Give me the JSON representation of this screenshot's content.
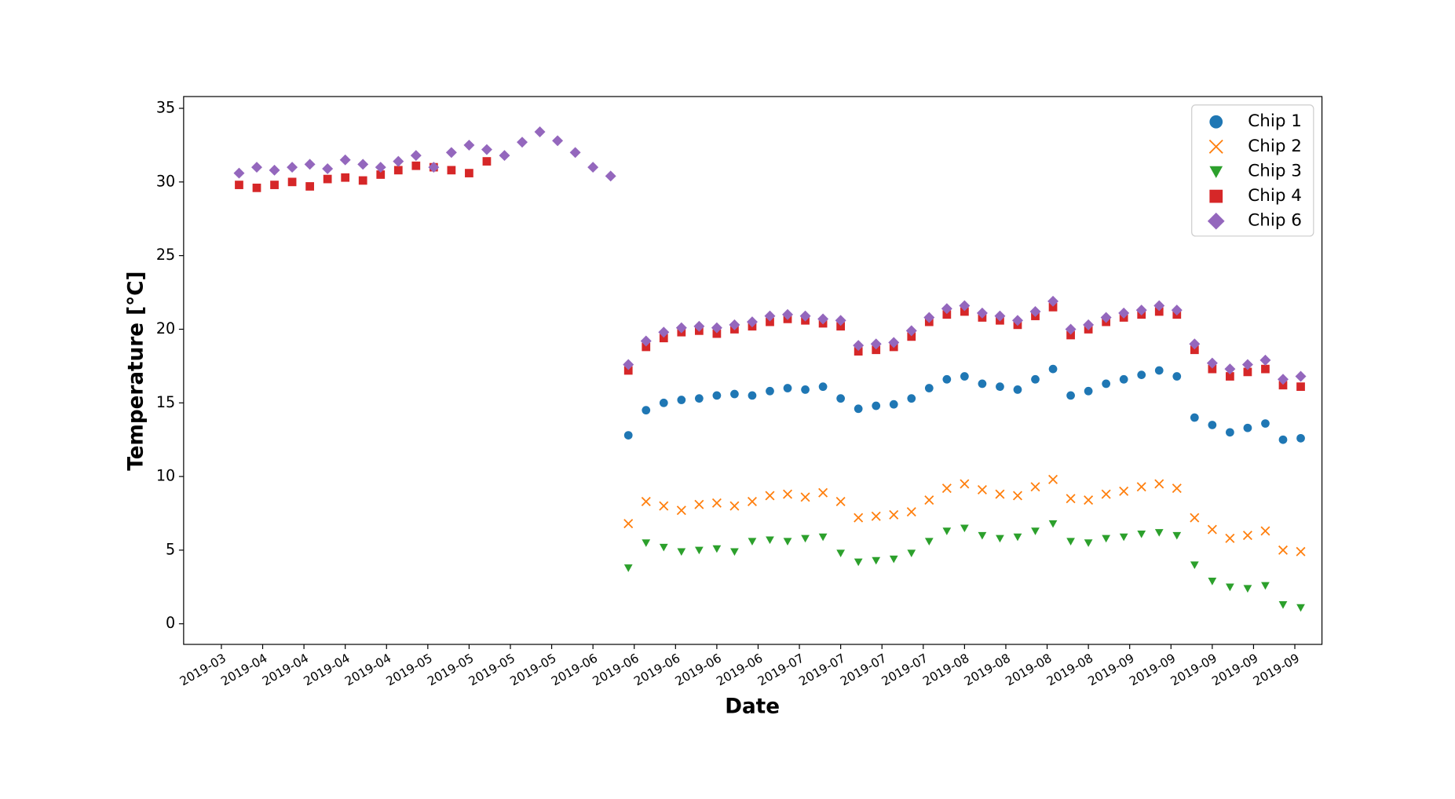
{
  "chart_data": {
    "type": "scatter",
    "x_label": "Date",
    "y_label": "Temperature [°C]",
    "xlim": [
      83.6,
      276.6
    ],
    "ylim": [
      -1.4,
      35.8
    ],
    "yticks": [
      0,
      5,
      10,
      15,
      20,
      25,
      30,
      35
    ],
    "xticks": [
      {
        "value": 90,
        "label": "2019-03"
      },
      {
        "value": 97,
        "label": "2019-04"
      },
      {
        "value": 104,
        "label": "2019-04"
      },
      {
        "value": 111,
        "label": "2019-04"
      },
      {
        "value": 118,
        "label": "2019-04"
      },
      {
        "value": 125,
        "label": "2019-05"
      },
      {
        "value": 132,
        "label": "2019-05"
      },
      {
        "value": 139,
        "label": "2019-05"
      },
      {
        "value": 146,
        "label": "2019-05"
      },
      {
        "value": 153,
        "label": "2019-06"
      },
      {
        "value": 160,
        "label": "2019-06"
      },
      {
        "value": 167,
        "label": "2019-06"
      },
      {
        "value": 174,
        "label": "2019-06"
      },
      {
        "value": 181,
        "label": "2019-06"
      },
      {
        "value": 188,
        "label": "2019-07"
      },
      {
        "value": 195,
        "label": "2019-07"
      },
      {
        "value": 202,
        "label": "2019-07"
      },
      {
        "value": 209,
        "label": "2019-07"
      },
      {
        "value": 216,
        "label": "2019-08"
      },
      {
        "value": 223,
        "label": "2019-08"
      },
      {
        "value": 230,
        "label": "2019-08"
      },
      {
        "value": 237,
        "label": "2019-08"
      },
      {
        "value": 244,
        "label": "2019-09"
      },
      {
        "value": 251,
        "label": "2019-09"
      },
      {
        "value": 258,
        "label": "2019-09"
      },
      {
        "value": 265,
        "label": "2019-09"
      },
      {
        "value": 272,
        "label": "2019-09"
      }
    ],
    "legend": "upper right",
    "series": [
      {
        "name": "Chip 1",
        "color": "#1f77b4",
        "marker": "circle",
        "x": [
          159,
          162,
          165,
          168,
          171,
          174,
          177,
          180,
          183,
          186,
          189,
          192,
          195,
          198,
          201,
          204,
          207,
          210,
          213,
          216,
          219,
          222,
          225,
          228,
          231,
          234,
          237,
          240,
          243,
          246,
          249,
          252,
          255,
          258,
          261,
          264,
          267,
          270,
          273
        ],
        "values": [
          12.8,
          14.5,
          15,
          15.2,
          15.3,
          15.5,
          15.6,
          15.5,
          15.8,
          16.0,
          15.9,
          16.1,
          15.3,
          14.6,
          14.8,
          14.9,
          15.3,
          16.0,
          16.6,
          16.8,
          16.3,
          16.1,
          15.9,
          16.6,
          17.3,
          15.5,
          15.8,
          16.3,
          16.6,
          16.9,
          17.2,
          16.8,
          14.0,
          13.5,
          13.0,
          13.3,
          13.6,
          12.5,
          12.6
        ]
      },
      {
        "name": "Chip 2",
        "color": "#ff7f0e",
        "marker": "x",
        "x": [
          159,
          162,
          165,
          168,
          171,
          174,
          177,
          180,
          183,
          186,
          189,
          192,
          195,
          198,
          201,
          204,
          207,
          210,
          213,
          216,
          219,
          222,
          225,
          228,
          231,
          234,
          237,
          240,
          243,
          246,
          249,
          252,
          255,
          258,
          261,
          264,
          267,
          270,
          273
        ],
        "values": [
          6.8,
          8.3,
          8.0,
          7.7,
          8.1,
          8.2,
          8.0,
          8.3,
          8.7,
          8.8,
          8.6,
          8.9,
          8.3,
          7.2,
          7.3,
          7.4,
          7.6,
          8.4,
          9.2,
          9.5,
          9.1,
          8.8,
          8.7,
          9.3,
          9.8,
          8.5,
          8.4,
          8.8,
          9.0,
          9.3,
          9.5,
          9.2,
          7.2,
          6.4,
          5.8,
          6.0,
          6.3,
          5.0,
          4.9
        ]
      },
      {
        "name": "Chip 3",
        "color": "#2ca02c",
        "marker": "triangle-down",
        "x": [
          159,
          162,
          165,
          168,
          171,
          174,
          177,
          180,
          183,
          186,
          189,
          192,
          195,
          198,
          201,
          204,
          207,
          210,
          213,
          216,
          219,
          222,
          225,
          228,
          231,
          234,
          237,
          240,
          243,
          246,
          249,
          252,
          255,
          258,
          261,
          264,
          267,
          270,
          273
        ],
        "values": [
          3.8,
          5.5,
          5.2,
          4.9,
          5.0,
          5.1,
          4.9,
          5.6,
          5.7,
          5.6,
          5.8,
          5.9,
          4.8,
          4.2,
          4.3,
          4.4,
          4.8,
          5.6,
          6.3,
          6.5,
          6.0,
          5.8,
          5.9,
          6.3,
          6.8,
          5.6,
          5.5,
          5.8,
          5.9,
          6.1,
          6.2,
          6.0,
          4.0,
          2.9,
          2.5,
          2.4,
          2.6,
          1.3,
          1.1
        ]
      },
      {
        "name": "Chip 4",
        "color": "#d62728",
        "marker": "square",
        "x": [
          93,
          96,
          99,
          102,
          105,
          108,
          111,
          114,
          117,
          120,
          123,
          126,
          129,
          132,
          135,
          159,
          162,
          165,
          168,
          171,
          174,
          177,
          180,
          183,
          186,
          189,
          192,
          195,
          198,
          201,
          204,
          207,
          210,
          213,
          216,
          219,
          222,
          225,
          228,
          231,
          234,
          237,
          240,
          243,
          246,
          249,
          252,
          255,
          258,
          261,
          264,
          267,
          270,
          273
        ],
        "values": [
          29.8,
          29.6,
          29.8,
          30.0,
          29.7,
          30.2,
          30.3,
          30.1,
          30.5,
          30.8,
          31.1,
          31.0,
          30.8,
          30.6,
          31.4,
          17.2,
          18.8,
          19.4,
          19.8,
          19.9,
          19.7,
          20.0,
          20.2,
          20.5,
          20.7,
          20.6,
          20.4,
          20.2,
          18.5,
          18.6,
          18.8,
          19.5,
          20.5,
          21.0,
          21.2,
          20.8,
          20.6,
          20.3,
          20.9,
          21.5,
          19.6,
          20.0,
          20.5,
          20.8,
          21.0,
          21.2,
          21.0,
          18.6,
          17.3,
          16.8,
          17.1,
          17.3,
          16.2,
          16.1
        ]
      },
      {
        "name": "Chip 6",
        "color": "#9467bd",
        "marker": "diamond",
        "x": [
          93,
          96,
          99,
          102,
          105,
          108,
          111,
          114,
          117,
          120,
          123,
          126,
          129,
          132,
          135,
          138,
          141,
          144,
          147,
          150,
          153,
          156,
          159,
          162,
          165,
          168,
          171,
          174,
          177,
          180,
          183,
          186,
          189,
          192,
          195,
          198,
          201,
          204,
          207,
          210,
          213,
          216,
          219,
          222,
          225,
          228,
          231,
          234,
          237,
          240,
          243,
          246,
          249,
          252,
          255,
          258,
          261,
          264,
          267,
          270,
          273
        ],
        "values": [
          30.6,
          31.0,
          30.8,
          31.0,
          31.2,
          30.9,
          31.5,
          31.2,
          31.0,
          31.4,
          31.8,
          31.0,
          32.0,
          32.5,
          32.2,
          31.8,
          32.7,
          33.4,
          32.8,
          32.0,
          31.0,
          30.4,
          17.6,
          19.2,
          19.8,
          20.1,
          20.2,
          20.1,
          20.3,
          20.5,
          20.9,
          21.0,
          20.9,
          20.7,
          20.6,
          18.9,
          19.0,
          19.1,
          19.9,
          20.8,
          21.4,
          21.6,
          21.1,
          20.9,
          20.6,
          21.2,
          21.9,
          20.0,
          20.3,
          20.8,
          21.1,
          21.3,
          21.6,
          21.3,
          19.0,
          17.7,
          17.3,
          17.6,
          17.9,
          16.6,
          16.8
        ]
      }
    ]
  }
}
